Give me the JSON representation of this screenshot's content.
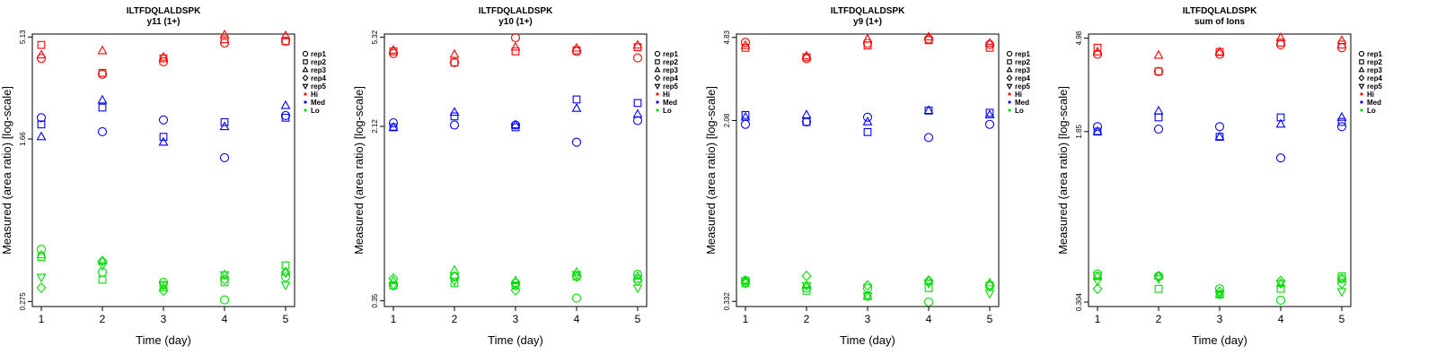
{
  "legend": {
    "reps": [
      {
        "name": "rep1",
        "shape": "circle"
      },
      {
        "name": "rep2",
        "shape": "square"
      },
      {
        "name": "rep3",
        "shape": "triangle-up"
      },
      {
        "name": "rep4",
        "shape": "diamond"
      },
      {
        "name": "rep5",
        "shape": "triangle-down"
      }
    ],
    "groups": [
      {
        "name": "Hi",
        "color": "#ff0000"
      },
      {
        "name": "Med",
        "color": "#0000ff"
      },
      {
        "name": "Lo",
        "color": "#00dd00"
      }
    ]
  },
  "chart_data": [
    {
      "type": "scatter",
      "title": "ILTFDQLALDSPK",
      "subtitle": "y11 (1+)",
      "xlabel": "Time (day)",
      "ylabel": "Measured (area ratio) [log-scale]",
      "yscale": "log",
      "x_ticks": [
        "1",
        "2",
        "3",
        "4",
        "5"
      ],
      "y_ticks": [
        0.275,
        1.66,
        5.13
      ],
      "y_tick_labels": [
        "0.275",
        "1.66",
        "5.13"
      ],
      "ylim": [
        0.26,
        5.3
      ],
      "legend_position": "right",
      "series": [
        {
          "group": "Hi",
          "rep": "rep1",
          "values": [
            4.05,
            3.4,
            3.9,
            4.8,
            4.9
          ]
        },
        {
          "group": "Hi",
          "rep": "rep2",
          "values": [
            4.7,
            3.45,
            4.05,
            5.0,
            4.9
          ]
        },
        {
          "group": "Hi",
          "rep": "rep3",
          "values": [
            4.2,
            4.4,
            4.1,
            5.25,
            5.2
          ]
        },
        {
          "group": "Med",
          "rep": "rep1",
          "values": [
            2.1,
            1.8,
            2.05,
            1.35,
            2.15
          ]
        },
        {
          "group": "Med",
          "rep": "rep2",
          "values": [
            1.95,
            2.35,
            1.7,
            2.0,
            2.1
          ]
        },
        {
          "group": "Med",
          "rep": "rep3",
          "values": [
            1.7,
            2.55,
            1.6,
            1.9,
            2.4
          ]
        },
        {
          "group": "Lo",
          "rep": "rep1",
          "values": [
            0.49,
            0.38,
            0.34,
            0.28,
            0.36
          ]
        },
        {
          "group": "Lo",
          "rep": "rep2",
          "values": [
            0.45,
            0.35,
            0.33,
            0.34,
            0.41
          ]
        },
        {
          "group": "Lo",
          "rep": "rep3",
          "values": [
            0.46,
            0.43,
            0.32,
            0.37,
            0.38
          ]
        },
        {
          "group": "Lo",
          "rep": "rep4",
          "values": [
            0.32,
            0.43,
            0.31,
            0.35,
            0.38
          ]
        },
        {
          "group": "Lo",
          "rep": "rep5",
          "values": [
            0.36,
            0.41,
            0.33,
            0.37,
            0.33
          ]
        }
      ]
    },
    {
      "type": "scatter",
      "title": "ILTFDQLALDSPK",
      "subtitle": "y10 (1+)",
      "xlabel": "Time (day)",
      "ylabel": "Measured (area ratio) [log-scale]",
      "yscale": "log",
      "x_ticks": [
        "1",
        "2",
        "3",
        "4",
        "5"
      ],
      "y_ticks": [
        0.35,
        2.12,
        5.32
      ],
      "y_tick_labels": [
        "0.35",
        "2.12",
        "5.32"
      ],
      "ylim": [
        0.33,
        5.5
      ],
      "legend_position": "right",
      "series": [
        {
          "group": "Hi",
          "rep": "rep1",
          "values": [
            4.5,
            4.1,
            5.3,
            4.6,
            4.3
          ]
        },
        {
          "group": "Hi",
          "rep": "rep2",
          "values": [
            4.6,
            4.1,
            4.6,
            4.65,
            4.8
          ]
        },
        {
          "group": "Hi",
          "rep": "rep3",
          "values": [
            4.65,
            4.45,
            4.8,
            4.75,
            4.9
          ]
        },
        {
          "group": "Med",
          "rep": "rep1",
          "values": [
            2.2,
            2.15,
            2.15,
            1.8,
            2.25
          ]
        },
        {
          "group": "Med",
          "rep": "rep2",
          "values": [
            2.1,
            2.35,
            2.1,
            2.8,
            2.7
          ]
        },
        {
          "group": "Med",
          "rep": "rep3",
          "values": [
            2.1,
            2.45,
            2.15,
            2.55,
            2.4
          ]
        },
        {
          "group": "Lo",
          "rep": "rep1",
          "values": [
            0.41,
            0.45,
            0.42,
            0.36,
            0.46
          ]
        },
        {
          "group": "Lo",
          "rep": "rep2",
          "values": [
            0.41,
            0.42,
            0.41,
            0.45,
            0.44
          ]
        },
        {
          "group": "Lo",
          "rep": "rep3",
          "values": [
            0.43,
            0.48,
            0.43,
            0.47,
            0.45
          ]
        },
        {
          "group": "Lo",
          "rep": "rep4",
          "values": [
            0.44,
            0.45,
            0.39,
            0.45,
            0.43
          ]
        },
        {
          "group": "Lo",
          "rep": "rep5",
          "values": [
            0.41,
            0.43,
            0.41,
            0.46,
            0.4
          ]
        }
      ]
    },
    {
      "type": "scatter",
      "title": "ILTFDQLALDSPK",
      "subtitle": "y9 (1+)",
      "xlabel": "Time (day)",
      "ylabel": "Measured (area ratio) [log-scale]",
      "yscale": "log",
      "x_ticks": [
        "1",
        "2",
        "3",
        "4",
        "5"
      ],
      "y_ticks": [
        0.332,
        2.08,
        4.83
      ],
      "y_tick_labels": [
        "0.332",
        "2.08",
        "4.83"
      ],
      "ylim": [
        0.315,
        5.0
      ],
      "legend_position": "right",
      "series": [
        {
          "group": "Hi",
          "rep": "rep1",
          "values": [
            4.6,
            3.9,
            4.55,
            4.75,
            4.5
          ]
        },
        {
          "group": "Hi",
          "rep": "rep2",
          "values": [
            4.35,
            3.95,
            4.45,
            4.7,
            4.35
          ]
        },
        {
          "group": "Hi",
          "rep": "rep3",
          "values": [
            4.45,
            4.0,
            4.75,
            4.85,
            4.55
          ]
        },
        {
          "group": "Med",
          "rep": "rep1",
          "values": [
            2.0,
            2.05,
            2.15,
            1.75,
            2.0
          ]
        },
        {
          "group": "Med",
          "rep": "rep2",
          "values": [
            2.2,
            2.05,
            1.85,
            2.3,
            2.25
          ]
        },
        {
          "group": "Med",
          "rep": "rep3",
          "values": [
            2.15,
            2.2,
            2.05,
            2.3,
            2.2
          ]
        },
        {
          "group": "Lo",
          "rep": "rep1",
          "values": [
            0.41,
            0.38,
            0.38,
            0.33,
            0.39
          ]
        },
        {
          "group": "Lo",
          "rep": "rep2",
          "values": [
            0.4,
            0.37,
            0.35,
            0.38,
            0.39
          ]
        },
        {
          "group": "Lo",
          "rep": "rep3",
          "values": [
            0.41,
            0.39,
            0.35,
            0.41,
            0.4
          ]
        },
        {
          "group": "Lo",
          "rep": "rep4",
          "values": [
            0.4,
            0.43,
            0.39,
            0.41,
            0.39
          ]
        },
        {
          "group": "Lo",
          "rep": "rep5",
          "values": [
            0.41,
            0.39,
            0.35,
            0.4,
            0.36
          ]
        }
      ]
    },
    {
      "type": "scatter",
      "title": "ILTFDQLALDSPK",
      "subtitle": "sum of Ions",
      "xlabel": "Time (day)",
      "ylabel": "Measured (area ratio) [log-scale]",
      "yscale": "log",
      "x_ticks": [
        "1",
        "2",
        "3",
        "4",
        "5"
      ],
      "y_ticks": [
        0.304,
        1.85,
        4.98
      ],
      "y_tick_labels": [
        "0.304",
        "1.85",
        "4.98"
      ],
      "ylim": [
        0.29,
        5.2
      ],
      "legend_position": "right",
      "series": [
        {
          "group": "Hi",
          "rep": "rep1",
          "values": [
            4.2,
            3.5,
            4.2,
            4.65,
            4.5
          ]
        },
        {
          "group": "Hi",
          "rep": "rep2",
          "values": [
            4.5,
            3.5,
            4.3,
            4.75,
            4.65
          ]
        },
        {
          "group": "Hi",
          "rep": "rep3",
          "values": [
            4.3,
            4.15,
            4.3,
            5.0,
            4.85
          ]
        },
        {
          "group": "Med",
          "rep": "rep1",
          "values": [
            1.95,
            1.9,
            1.95,
            1.4,
            1.95
          ]
        },
        {
          "group": "Med",
          "rep": "rep2",
          "values": [
            1.85,
            2.15,
            1.75,
            2.15,
            2.05
          ]
        },
        {
          "group": "Med",
          "rep": "rep3",
          "values": [
            1.85,
            2.3,
            1.75,
            2.0,
            2.15
          ]
        },
        {
          "group": "Lo",
          "rep": "rep1",
          "values": [
            0.41,
            0.4,
            0.35,
            0.31,
            0.39
          ]
        },
        {
          "group": "Lo",
          "rep": "rep2",
          "values": [
            0.4,
            0.35,
            0.33,
            0.35,
            0.4
          ]
        },
        {
          "group": "Lo",
          "rep": "rep3",
          "values": [
            0.4,
            0.4,
            0.33,
            0.37,
            0.39
          ]
        },
        {
          "group": "Lo",
          "rep": "rep4",
          "values": [
            0.35,
            0.4,
            0.34,
            0.38,
            0.37
          ]
        },
        {
          "group": "Lo",
          "rep": "rep5",
          "values": [
            0.38,
            0.39,
            0.33,
            0.37,
            0.34
          ]
        }
      ]
    }
  ]
}
